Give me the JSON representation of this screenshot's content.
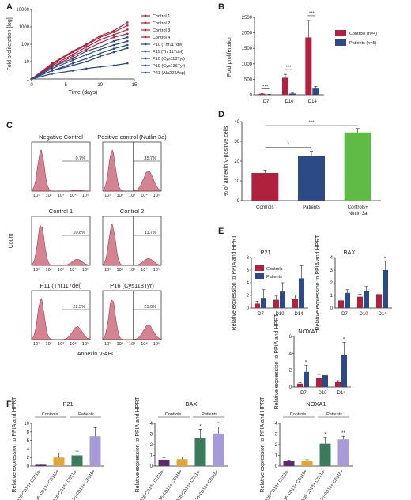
{
  "colors": {
    "control": "#b0213d",
    "patient": "#2c4a86",
    "green": "#5fba46",
    "hist": "#c45a6c",
    "purple": "#5a2d6e",
    "orange": "#e2a637",
    "darkgreen": "#3c7a5c",
    "lavender": "#a79ad6"
  },
  "panels": {
    "A": "A",
    "B": "B",
    "C": "C",
    "D": "D",
    "E": "E",
    "F": "F"
  },
  "chart_data": [
    {
      "panel": "A",
      "type": "line",
      "ylabel": "Fold proliferation [log]",
      "xlabel": "Time (days)",
      "xticks": [
        "0",
        "5",
        "10",
        "15"
      ],
      "yticks": [
        "1",
        "10",
        "100",
        "1000",
        "10000"
      ],
      "xlim": [
        0,
        15
      ],
      "ylim": [
        1,
        10000
      ],
      "yscale": "log",
      "series": [
        {
          "name": "Control 1",
          "group": "control",
          "x": [
            0,
            3,
            6,
            8,
            10,
            12,
            14
          ],
          "y": [
            1,
            8,
            40,
            100,
            300,
            600,
            1800
          ]
        },
        {
          "name": "Control 2",
          "group": "control",
          "x": [
            0,
            3,
            6,
            8,
            10,
            12,
            14
          ],
          "y": [
            1,
            7,
            35,
            90,
            250,
            500,
            1200
          ]
        },
        {
          "name": "Control 3",
          "group": "control",
          "x": [
            0,
            3,
            6,
            8,
            10,
            12,
            14
          ],
          "y": [
            1,
            6,
            25,
            70,
            180,
            350,
            700
          ]
        },
        {
          "name": "Control 4",
          "group": "control",
          "x": [
            0,
            3,
            6,
            8,
            10,
            12,
            14
          ],
          "y": [
            1,
            5,
            20,
            50,
            120,
            250,
            400
          ]
        },
        {
          "name": "P10 (Thr117del)",
          "group": "patient",
          "x": [
            0,
            3,
            6,
            8,
            10,
            12,
            14
          ],
          "y": [
            1,
            5,
            15,
            40,
            70,
            150,
            250
          ]
        },
        {
          "name": "P11 (Thr117del)",
          "group": "patient",
          "x": [
            0,
            3,
            6,
            8,
            10,
            12,
            14
          ],
          "y": [
            1,
            4,
            12,
            25,
            50,
            90,
            150
          ]
        },
        {
          "name": "P16 (Cys118Tyr)",
          "group": "patient",
          "x": [
            0,
            3,
            6,
            8,
            10,
            12,
            14
          ],
          "y": [
            1,
            3,
            8,
            15,
            30,
            55,
            90
          ]
        },
        {
          "name": "P19 (Cys136Tyr)",
          "group": "patient",
          "x": [
            0,
            3,
            6,
            8,
            10,
            12,
            14
          ],
          "y": [
            1,
            3,
            6,
            10,
            20,
            35,
            60
          ]
        },
        {
          "name": "P21 (Ala223Asp)",
          "group": "patient",
          "x": [
            0,
            3,
            6,
            8,
            10,
            12,
            14
          ],
          "y": [
            1,
            2,
            3,
            4,
            5,
            6,
            8
          ]
        }
      ]
    },
    {
      "panel": "B",
      "type": "bar",
      "ylabel": "Fold proliferation",
      "categories": [
        "D7",
        "D10",
        "D14"
      ],
      "yticks": [
        "0",
        "500",
        "1000",
        "1500",
        "2000",
        "2500"
      ],
      "ylim": [
        0,
        2500
      ],
      "series": [
        {
          "name": "Controls (n=4)",
          "group": "control",
          "values": [
            30,
            550,
            1850
          ],
          "errors": [
            10,
            110,
            550
          ]
        },
        {
          "name": "Patients (n=5)",
          "group": "patient",
          "values": [
            10,
            40,
            200
          ],
          "errors": [
            5,
            15,
            70
          ]
        }
      ],
      "sig": [
        "***",
        "***",
        "***"
      ]
    },
    {
      "panel": "D",
      "type": "bar",
      "ylabel": "% of annexin V-positive cells",
      "categories": [
        "Controls",
        "Patients",
        "Controls+ Nutlin 3a"
      ],
      "yticks": [
        "0",
        "10",
        "20",
        "30",
        "40"
      ],
      "ylim": [
        0,
        40
      ],
      "values": [
        14,
        22.5,
        34.5
      ],
      "errors": [
        1.5,
        2.5,
        2.0
      ],
      "bar_colors": [
        "control",
        "patient",
        "green"
      ],
      "sig": [
        "*",
        "***"
      ]
    },
    {
      "panel": "C",
      "type": "histogram",
      "xlabel": "Annexin V-APC",
      "ylabel": "Count",
      "xticks": [
        "10¹",
        "10²",
        "10³",
        "10⁴",
        "10⁵"
      ],
      "plots": [
        {
          "title": "Negative Control",
          "pct": "0.7%",
          "tail": 0.02
        },
        {
          "title": "Positive control (Nutlin 3a)",
          "pct": "35.7%",
          "tail": 0.5
        },
        {
          "title": "Control 1",
          "pct": "10.8%",
          "tail": 0.15
        },
        {
          "title": "Control 2",
          "pct": "11.7%",
          "tail": 0.17
        },
        {
          "title": "P11 (Thr117del)",
          "pct": "22.5%",
          "tail": 0.32
        },
        {
          "title": "P16 (Cys118Tyr)",
          "pct": "25.0%",
          "tail": 0.36
        }
      ]
    },
    {
      "panel": "E",
      "type": "bar",
      "ylabel": "Relative expression to PPIA and HPRT",
      "legend": [
        "Controls",
        "Patients"
      ],
      "categories": [
        "D7",
        "D10",
        "D14"
      ],
      "plots": [
        {
          "title": "P21",
          "ylim": [
            0,
            8
          ],
          "yticks": [
            "0",
            "2",
            "4",
            "6",
            "8"
          ],
          "controls": [
            0.7,
            1.3,
            1.5
          ],
          "controls_err": [
            0.4,
            0.6,
            0.6
          ],
          "patients": [
            1.6,
            2.6,
            4.7
          ],
          "patients_err": [
            1.3,
            1.4,
            2.0
          ],
          "sig": [
            "",
            "",
            ""
          ]
        },
        {
          "title": "BAX",
          "ylim": [
            0,
            4
          ],
          "yticks": [
            "0",
            "1",
            "2",
            "3",
            "4"
          ],
          "controls": [
            0.6,
            0.9,
            1.1
          ],
          "controls_err": [
            0.1,
            0.2,
            0.25
          ],
          "patients": [
            1.2,
            1.35,
            3.0
          ],
          "patients_err": [
            0.25,
            0.35,
            0.7
          ],
          "sig": [
            "",
            "",
            "*"
          ]
        },
        {
          "title": "NOXA1",
          "ylim": [
            0,
            6
          ],
          "yticks": [
            "0",
            "2",
            "4",
            "6"
          ],
          "controls": [
            0.4,
            1.1,
            0.6
          ],
          "controls_err": [
            0.1,
            0.4,
            0.15
          ],
          "patients": [
            1.8,
            1.4,
            3.8
          ],
          "patients_err": [
            0.8,
            0.0,
            1.5
          ],
          "sig": [
            "*",
            "",
            "*"
          ]
        }
      ]
    },
    {
      "panel": "F",
      "type": "bar",
      "ylabel": "Relative expression to PPIA and HPRT",
      "groups": [
        "Controls",
        "Patients"
      ],
      "categories": [
        "CD36-CD13+ CD11b-",
        "CD36-CD13+ CD11b+",
        "CD36-CD13+ CD11b-",
        "CD36-CD13+ CD11b+"
      ],
      "bar_colors": [
        "purple",
        "orange",
        "darkgreen",
        "lavender"
      ],
      "plots": [
        {
          "title": "P21",
          "ylim": [
            0,
            10
          ],
          "yticks": [
            "0",
            "2",
            "4",
            "6",
            "8",
            "10"
          ],
          "values": [
            0.3,
            2.0,
            2.5,
            7.0
          ],
          "errors": [
            0.2,
            1.0,
            1.0,
            2.0
          ],
          "sig": [
            "",
            "",
            "",
            ""
          ]
        },
        {
          "title": "BAX",
          "ylim": [
            0,
            4
          ],
          "yticks": [
            "0",
            "1",
            "2",
            "3",
            "4"
          ],
          "values": [
            0.6,
            0.65,
            2.6,
            3.05
          ],
          "errors": [
            0.2,
            0.2,
            0.85,
            0.6
          ],
          "sig": [
            "",
            "",
            "*",
            "*"
          ]
        },
        {
          "title": "NOXA1",
          "ylim": [
            0,
            4
          ],
          "yticks": [
            "0",
            "1",
            "2",
            "3",
            "4"
          ],
          "values": [
            0.45,
            0.5,
            2.1,
            2.5
          ],
          "errors": [
            0.1,
            0.1,
            0.6,
            0.3
          ],
          "sig": [
            "",
            "",
            "*",
            "**"
          ]
        }
      ]
    }
  ]
}
